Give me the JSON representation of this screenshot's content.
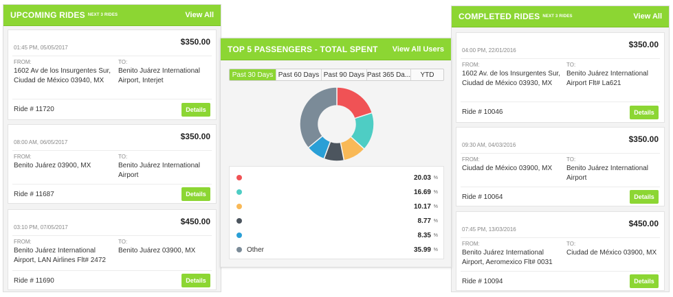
{
  "upcoming": {
    "title": "UPCOMING RIDES",
    "subtitle": "NEXT 3 RIDES",
    "view_all": "View All",
    "from_label": "FROM:",
    "to_label": "TO:",
    "details_label": "Details",
    "rides": [
      {
        "datetime": "01:45 PM, 05/05/2017",
        "price": "$350.00",
        "from": "1602 Av de los Insurgentes Sur, Ciudad de México 03940, MX",
        "to": "Benito Juárez International Airport, Interjet",
        "ride": "Ride # 11720"
      },
      {
        "datetime": "08:00 AM, 06/05/2017",
        "price": "$350.00",
        "from": "Benito Juárez 03900, MX",
        "to": "Benito Juárez International Airport",
        "ride": "Ride # 11687"
      },
      {
        "datetime": "03:10 PM, 07/05/2017",
        "price": "$450.00",
        "from": "Benito Juárez International Airport, LAN Airlines Flt# 2472",
        "to": "Benito Juárez 03900, MX",
        "ride": "Ride # 11690"
      }
    ]
  },
  "passengers": {
    "title": "TOP 5 PASSENGERS - TOTAL SPENT",
    "view_all": "View All Users",
    "tabs": [
      "Past 30 Days",
      "Past 60 Days",
      "Past 90 Days",
      "Past 365 Da...",
      "YTD"
    ],
    "active_tab": 0,
    "pct_symbol": "%",
    "legend": [
      {
        "name": "",
        "value": "20.03",
        "color": "#f05255"
      },
      {
        "name": "",
        "value": "16.69",
        "color": "#4ecdc4"
      },
      {
        "name": "",
        "value": "10.17",
        "color": "#f9b957"
      },
      {
        "name": "",
        "value": "8.77",
        "color": "#4c555e"
      },
      {
        "name": "",
        "value": "8.35",
        "color": "#2a9fd6"
      },
      {
        "name": "Other",
        "value": "35.99",
        "color": "#7b8b98"
      }
    ]
  },
  "completed": {
    "title": "COMPLETED RIDES",
    "subtitle": "NEXT 3 RIDES",
    "view_all": "View All",
    "from_label": "FROM:",
    "to_label": "TO:",
    "details_label": "Details",
    "rides": [
      {
        "datetime": "04:00 PM, 22/01/2016",
        "price": "$350.00",
        "from": "1602 Av. de los Insurgentes Sur, Ciudad de México 03930, MX",
        "to": "Benito Juárez International Airport Flt# La621",
        "ride": "Ride # 10046"
      },
      {
        "datetime": "09:30 AM, 04/03/2016",
        "price": "$350.00",
        "from": "Ciudad de México 03900, MX",
        "to": "Benito Juárez International Airport",
        "ride": "Ride # 10064"
      },
      {
        "datetime": "07:45 PM, 13/03/2016",
        "price": "$450.00",
        "from": "Benito Juárez International Airport, Aeromexico Flt# 0031",
        "to": "Ciudad de México 03900, MX",
        "ride": "Ride # 10094"
      }
    ]
  }
}
